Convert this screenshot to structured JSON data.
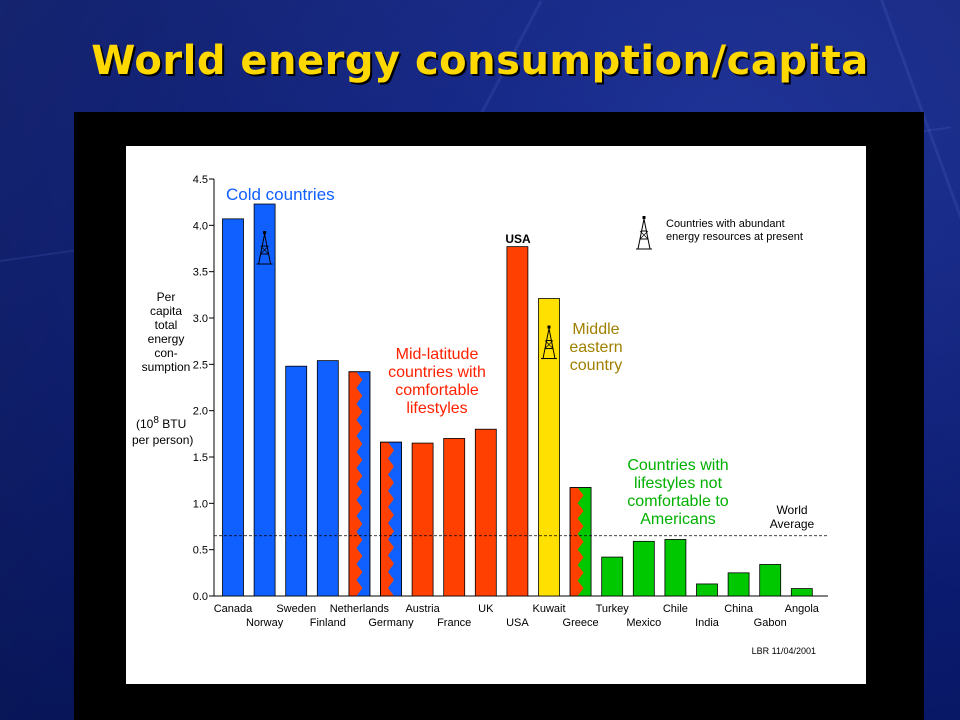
{
  "slide": {
    "title": "World energy consumption/capita"
  },
  "chart_data": {
    "type": "bar",
    "ylim": [
      0,
      4.5
    ],
    "yticks": [
      "0.0",
      "0.5",
      "1.0",
      "1.5",
      "2.0",
      "2.5",
      "3.0",
      "3.5",
      "4.0",
      "4.5"
    ],
    "ylabel_lines": [
      "Per",
      "capita",
      "total",
      "energy",
      "con-",
      "sumption"
    ],
    "yunit_lines": [
      "(10",
      "8",
      " BTU",
      "per person)"
    ],
    "categories": [
      "Canada",
      "Norway",
      "Sweden",
      "Finland",
      "Netherlands",
      "Germany",
      "Austria",
      "France",
      "UK",
      "USA",
      "Kuwait",
      "Greece",
      "Turkey",
      "Mexico",
      "Chile",
      "India",
      "China",
      "Gabon",
      "Angola"
    ],
    "values": [
      4.07,
      4.23,
      2.48,
      2.54,
      2.42,
      1.66,
      1.65,
      1.7,
      1.8,
      3.77,
      3.21,
      1.17,
      0.42,
      0.59,
      0.61,
      0.13,
      0.25,
      0.34,
      0.08
    ],
    "groups": [
      "cold",
      "cold",
      "cold",
      "cold",
      "mid",
      "mid",
      "mid",
      "mid",
      "mid",
      "mid",
      "middle-east",
      "mid",
      "poor",
      "poor",
      "poor",
      "poor",
      "poor",
      "poor",
      "poor"
    ],
    "split_fill": [
      false,
      false,
      false,
      false,
      true,
      true,
      false,
      false,
      false,
      false,
      false,
      true,
      false,
      false,
      false,
      false,
      false,
      false,
      false
    ],
    "resource_marker": [
      false,
      true,
      false,
      false,
      false,
      false,
      false,
      false,
      false,
      false,
      true,
      false,
      false,
      false,
      false,
      false,
      false,
      false,
      false
    ],
    "colors": {
      "cold": "#1060ff",
      "mid": "#ff4000",
      "middle-east": "#ffe000",
      "poor": "#00c800"
    },
    "world_average": 0.65,
    "world_average_lines": [
      "World",
      "Average"
    ],
    "annotations": {
      "cold_lines": [
        "Cold countries"
      ],
      "mid_lines": [
        "Mid-latitude",
        "countries with",
        "comfortable",
        "lifestyles"
      ],
      "usa_label": "USA",
      "middle_east_lines": [
        "Middle",
        "eastern",
        "country"
      ],
      "poor_lines": [
        "Countries with",
        "lifestyles not",
        "comfortable to",
        "Americans"
      ]
    },
    "annotation_colors": {
      "cold": "#1060ff",
      "mid": "#ff2000",
      "middle-east": "#a08000",
      "poor": "#00b000",
      "usa": "#000000"
    },
    "legend_lines": [
      "Countries with abundant",
      "energy resources at present"
    ],
    "credit": "LBR 11/04/2001",
    "grid": false
  }
}
